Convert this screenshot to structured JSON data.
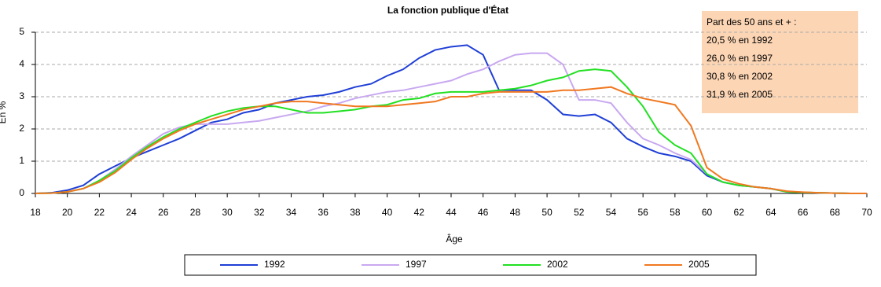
{
  "chart_data": {
    "type": "line",
    "title": "La fonction publique d'État",
    "xlabel": "Âge",
    "ylabel": "En %",
    "x": [
      18,
      19,
      20,
      21,
      22,
      23,
      24,
      25,
      26,
      27,
      28,
      29,
      30,
      31,
      32,
      33,
      34,
      35,
      36,
      37,
      38,
      39,
      40,
      41,
      42,
      43,
      44,
      45,
      46,
      47,
      48,
      49,
      50,
      51,
      52,
      53,
      54,
      55,
      56,
      57,
      58,
      59,
      60,
      61,
      62,
      63,
      64,
      65,
      66,
      67,
      68,
      69,
      70
    ],
    "xlim": [
      18,
      70
    ],
    "xticks": [
      18,
      20,
      22,
      24,
      26,
      28,
      30,
      32,
      34,
      36,
      38,
      40,
      42,
      44,
      46,
      48,
      50,
      52,
      54,
      56,
      58,
      60,
      62,
      64,
      66,
      68,
      70
    ],
    "ylim": [
      0,
      5
    ],
    "yticks": [
      0,
      1,
      2,
      3,
      4,
      5
    ],
    "grid": true,
    "annotation": [
      "Part des 50 ans et + :",
      "20,5 % en 1992",
      "26,0 % en 1997",
      "30,8 % en 2002",
      "31,9 % en 2005"
    ],
    "series": [
      {
        "name": "1992",
        "color": "#1f3fd6",
        "values": [
          0,
          0.02,
          0.1,
          0.25,
          0.6,
          0.85,
          1.1,
          1.3,
          1.5,
          1.7,
          1.95,
          2.2,
          2.3,
          2.5,
          2.6,
          2.8,
          2.9,
          3.0,
          3.05,
          3.15,
          3.3,
          3.4,
          3.65,
          3.85,
          4.2,
          4.45,
          4.55,
          4.6,
          4.3,
          3.2,
          3.2,
          3.2,
          2.9,
          2.45,
          2.4,
          2.45,
          2.2,
          1.7,
          1.45,
          1.25,
          1.15,
          1.0,
          0.55,
          0.35,
          0.25,
          0.2,
          0.15,
          0.05,
          0.03,
          0.02,
          0.01,
          0,
          0
        ]
      },
      {
        "name": "1997",
        "color": "#c8a8f0",
        "values": [
          0,
          0.01,
          0.05,
          0.15,
          0.4,
          0.75,
          1.15,
          1.5,
          1.85,
          2.05,
          2.15,
          2.15,
          2.15,
          2.2,
          2.25,
          2.35,
          2.45,
          2.55,
          2.7,
          2.8,
          2.95,
          3.05,
          3.15,
          3.2,
          3.3,
          3.4,
          3.5,
          3.7,
          3.85,
          4.1,
          4.3,
          4.35,
          4.35,
          4.0,
          2.9,
          2.9,
          2.8,
          2.2,
          1.7,
          1.5,
          1.25,
          1.05,
          0.6,
          0.35,
          0.25,
          0.2,
          0.15,
          0.05,
          0.03,
          0.02,
          0.01,
          0,
          0
        ]
      },
      {
        "name": "2002",
        "color": "#22e022",
        "values": [
          0,
          0.01,
          0.05,
          0.15,
          0.4,
          0.7,
          1.1,
          1.45,
          1.75,
          2.0,
          2.2,
          2.4,
          2.55,
          2.65,
          2.7,
          2.7,
          2.6,
          2.5,
          2.5,
          2.55,
          2.6,
          2.7,
          2.75,
          2.9,
          2.95,
          3.1,
          3.15,
          3.15,
          3.15,
          3.2,
          3.25,
          3.35,
          3.5,
          3.6,
          3.8,
          3.85,
          3.8,
          3.3,
          2.7,
          1.9,
          1.5,
          1.25,
          0.6,
          0.35,
          0.25,
          0.2,
          0.15,
          0.05,
          0.03,
          0.02,
          0.01,
          0,
          0
        ]
      },
      {
        "name": "2005",
        "color": "#f07820",
        "values": [
          0,
          0.01,
          0.05,
          0.15,
          0.35,
          0.65,
          1.05,
          1.4,
          1.7,
          1.95,
          2.15,
          2.3,
          2.45,
          2.6,
          2.7,
          2.8,
          2.85,
          2.85,
          2.8,
          2.75,
          2.7,
          2.7,
          2.7,
          2.75,
          2.8,
          2.85,
          3.0,
          3.0,
          3.1,
          3.15,
          3.15,
          3.15,
          3.15,
          3.2,
          3.2,
          3.25,
          3.3,
          3.1,
          2.95,
          2.85,
          2.75,
          2.1,
          0.8,
          0.45,
          0.3,
          0.2,
          0.15,
          0.07,
          0.04,
          0.02,
          0.01,
          0,
          0
        ]
      }
    ]
  }
}
